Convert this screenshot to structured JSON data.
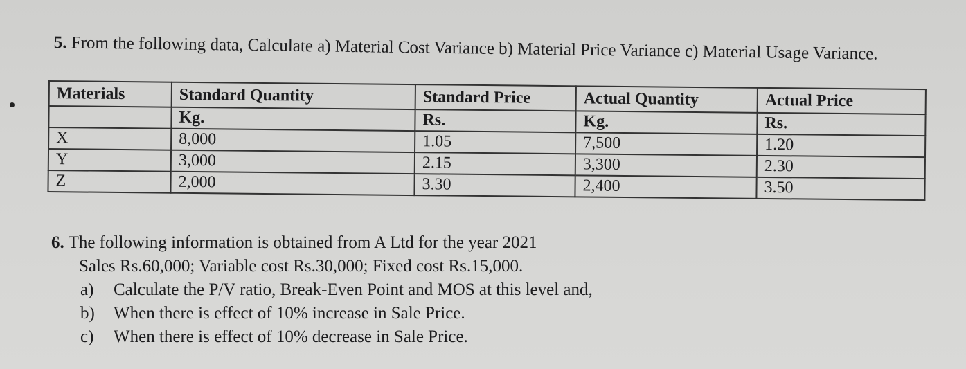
{
  "q5": {
    "number": "5.",
    "text": "From the following data, Calculate a) Material Cost Variance b) Material Price Variance c) Material Usage Variance."
  },
  "table": {
    "headers": [
      "Materials",
      "Standard Quantity",
      "Standard Price",
      "Actual Quantity",
      "Actual Price"
    ],
    "units": [
      "",
      "Kg.",
      "Rs.",
      "Kg.",
      "Rs."
    ],
    "rows": [
      [
        "X",
        "8,000",
        "1.05",
        "7,500",
        "1.20"
      ],
      [
        "Y",
        "3,000",
        "2.15",
        "3,300",
        "2.30"
      ],
      [
        "Z",
        "2,000",
        "3.30",
        "2,400",
        "3.50"
      ]
    ]
  },
  "q6": {
    "number": "6.",
    "text": "The following information is obtained from A Ltd for the year 2021",
    "details": "Sales Rs.60,000; Variable cost Rs.30,000; Fixed cost Rs.15,000.",
    "parts": [
      {
        "label": "a)",
        "text": "Calculate the P/V ratio, Break-Even Point and MOS at this level and,"
      },
      {
        "label": "b)",
        "text": "When there is effect of 10% increase in Sale Price."
      },
      {
        "label": "c)",
        "text": "When there is effect of 10% decrease in Sale Price."
      }
    ]
  }
}
